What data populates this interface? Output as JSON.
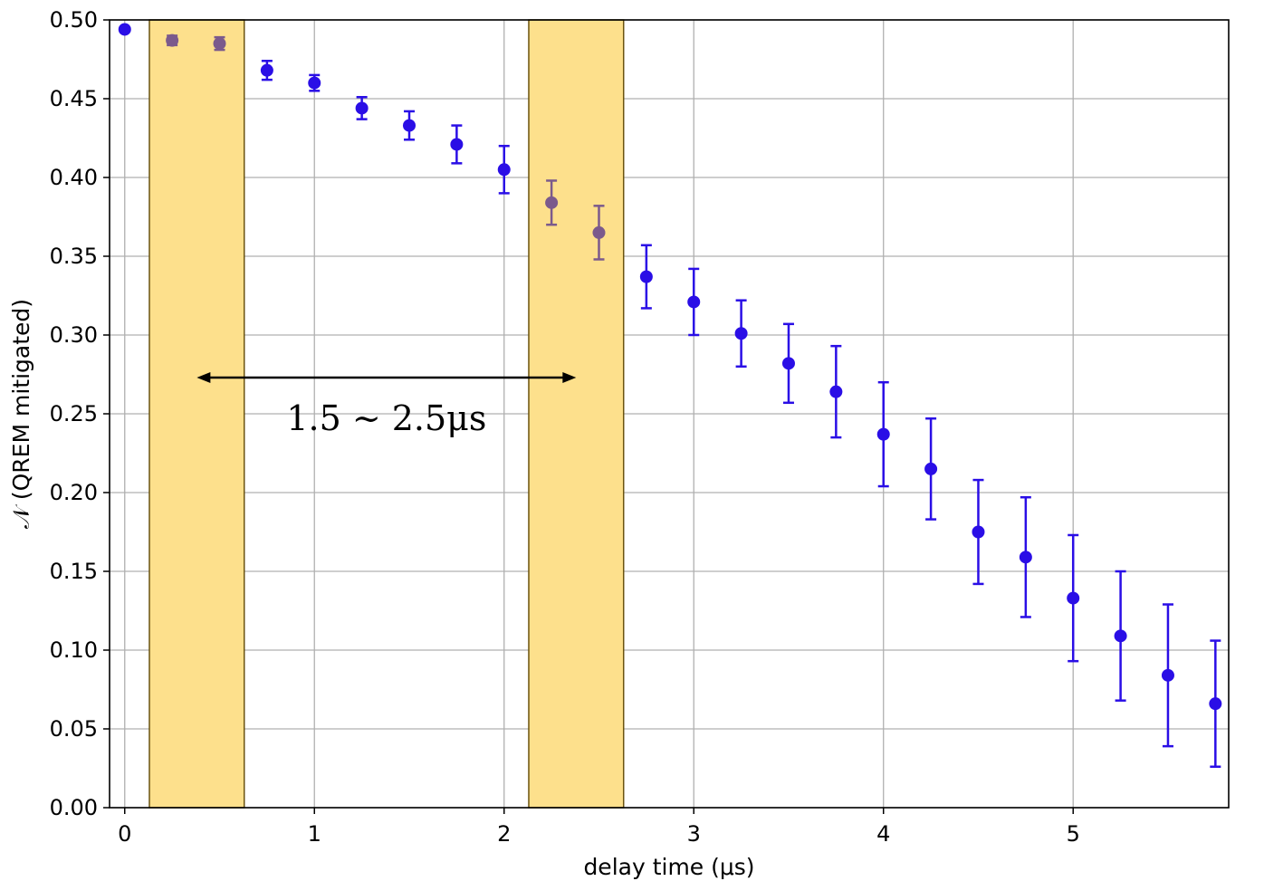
{
  "chart_data": {
    "type": "scatter",
    "xlabel": "delay time (μs)",
    "ylabel": "𝒩  (QREM mitigated)",
    "xlim": [
      -0.08,
      5.82
    ],
    "ylim": [
      0.0,
      0.5
    ],
    "x_ticks": [
      0,
      1,
      2,
      3,
      4,
      5
    ],
    "x_tick_labels": [
      "0",
      "1",
      "2",
      "3",
      "4",
      "5"
    ],
    "y_ticks": [
      0.0,
      0.05,
      0.1,
      0.15,
      0.2,
      0.25,
      0.3,
      0.35,
      0.4,
      0.45,
      0.5
    ],
    "y_tick_labels": [
      "0.00",
      "0.05",
      "0.10",
      "0.15",
      "0.20",
      "0.25",
      "0.30",
      "0.35",
      "0.40",
      "0.45",
      "0.50"
    ],
    "grid": true,
    "colors": {
      "points": "#2a0ee6",
      "highlighted_points": "#7b5a8c",
      "band_fill": "#fde08c",
      "band_edge": "#6b5410",
      "grid": "#b0b0b0"
    },
    "highlight_bands": [
      {
        "x_start": 0.13,
        "x_end": 0.63
      },
      {
        "x_start": 2.13,
        "x_end": 2.63
      }
    ],
    "annotation": {
      "text": "1.5 ∼ 2.5μs",
      "arrow": {
        "x_start": 0.38,
        "x_end": 2.38,
        "y": 0.273,
        "double_headed": true
      }
    },
    "series": [
      {
        "points": [
          {
            "x": 0.0,
            "y": 0.494,
            "err": 0.0,
            "highlight": false
          },
          {
            "x": 0.25,
            "y": 0.487,
            "err": 0.003,
            "highlight": true
          },
          {
            "x": 0.5,
            "y": 0.485,
            "err": 0.004,
            "highlight": true
          },
          {
            "x": 0.75,
            "y": 0.468,
            "err": 0.006,
            "highlight": false
          },
          {
            "x": 1.0,
            "y": 0.46,
            "err": 0.005,
            "highlight": false
          },
          {
            "x": 1.25,
            "y": 0.444,
            "err": 0.007,
            "highlight": false
          },
          {
            "x": 1.5,
            "y": 0.433,
            "err": 0.009,
            "highlight": false
          },
          {
            "x": 1.75,
            "y": 0.421,
            "err": 0.012,
            "highlight": false
          },
          {
            "x": 2.0,
            "y": 0.405,
            "err": 0.015,
            "highlight": false
          },
          {
            "x": 2.25,
            "y": 0.384,
            "err": 0.014,
            "highlight": true
          },
          {
            "x": 2.5,
            "y": 0.365,
            "err": 0.017,
            "highlight": true
          },
          {
            "x": 2.75,
            "y": 0.337,
            "err": 0.02,
            "highlight": false
          },
          {
            "x": 3.0,
            "y": 0.321,
            "err": 0.021,
            "highlight": false
          },
          {
            "x": 3.25,
            "y": 0.301,
            "err": 0.021,
            "highlight": false
          },
          {
            "x": 3.5,
            "y": 0.282,
            "err": 0.025,
            "highlight": false
          },
          {
            "x": 3.75,
            "y": 0.264,
            "err": 0.029,
            "highlight": false
          },
          {
            "x": 4.0,
            "y": 0.237,
            "err": 0.033,
            "highlight": false
          },
          {
            "x": 4.25,
            "y": 0.215,
            "err": 0.032,
            "highlight": false
          },
          {
            "x": 4.5,
            "y": 0.175,
            "err": 0.033,
            "highlight": false
          },
          {
            "x": 4.75,
            "y": 0.159,
            "err": 0.038,
            "highlight": false
          },
          {
            "x": 5.0,
            "y": 0.133,
            "err": 0.04,
            "highlight": false
          },
          {
            "x": 5.25,
            "y": 0.109,
            "err": 0.041,
            "highlight": false
          },
          {
            "x": 5.5,
            "y": 0.084,
            "err": 0.045,
            "highlight": false
          },
          {
            "x": 5.75,
            "y": 0.066,
            "err": 0.04,
            "highlight": false
          }
        ]
      }
    ]
  }
}
